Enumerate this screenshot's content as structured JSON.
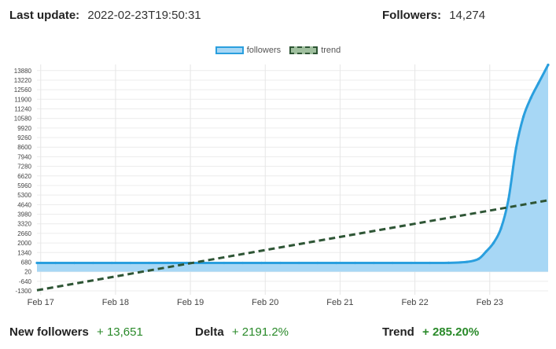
{
  "header": {
    "last_update_label": "Last update:",
    "last_update_value": "2022-02-23T19:50:31",
    "followers_label": "Followers:",
    "followers_value": "14,274"
  },
  "footer": {
    "new_followers_label": "New followers",
    "new_followers_value": "+ 13,651",
    "delta_label": "Delta",
    "delta_value": "+ 2191.2%",
    "trend_label": "Trend",
    "trend_value": "+ 285.20%"
  },
  "chart_data": {
    "type": "line",
    "legend": [
      "followers",
      "trend"
    ],
    "legend_position": "top-center",
    "grid": true,
    "x_ticks": [
      {
        "label": "Feb 17",
        "x": 0.05
      },
      {
        "label": "Feb 18",
        "x": 1.05
      },
      {
        "label": "Feb 19",
        "x": 2.05
      },
      {
        "label": "Feb 20",
        "x": 3.05
      },
      {
        "label": "Feb 21",
        "x": 4.05
      },
      {
        "label": "Feb 22",
        "x": 5.05
      },
      {
        "label": "Feb 23",
        "x": 6.05
      }
    ],
    "xlim": [
      0,
      6.83
    ],
    "ylim": [
      -1300,
      14300
    ],
    "y_ticks": [
      -1300,
      -640,
      20,
      680,
      1340,
      2000,
      2660,
      3320,
      3980,
      4640,
      5300,
      5960,
      6620,
      7280,
      7940,
      8600,
      9260,
      9920,
      10580,
      11240,
      11900,
      12560,
      13220,
      13880
    ],
    "series": [
      {
        "name": "followers",
        "color": "#2a9fde",
        "fill": "#a7d7f5",
        "x": [
          0,
          0.25,
          0.5,
          0.75,
          1.0,
          1.25,
          1.5,
          1.75,
          2.0,
          2.25,
          2.5,
          2.75,
          3.0,
          3.25,
          3.5,
          3.75,
          4.0,
          4.25,
          4.5,
          4.75,
          5.0,
          5.25,
          5.5,
          5.75,
          5.9,
          6.0,
          6.1,
          6.2,
          6.3,
          6.4,
          6.5,
          6.6,
          6.7,
          6.83
        ],
        "y": [
          623,
          623,
          623,
          623,
          623,
          623,
          623,
          623,
          623,
          623,
          623,
          623,
          623,
          623,
          623,
          623,
          623,
          623,
          623,
          623,
          623,
          623,
          630,
          700,
          900,
          1400,
          2000,
          3000,
          5000,
          8500,
          10700,
          12000,
          13000,
          14274
        ]
      },
      {
        "name": "trend",
        "color": "#2e5535",
        "dashed": true,
        "x": [
          0,
          6.83
        ],
        "y": [
          -1260,
          4940
        ]
      }
    ]
  }
}
